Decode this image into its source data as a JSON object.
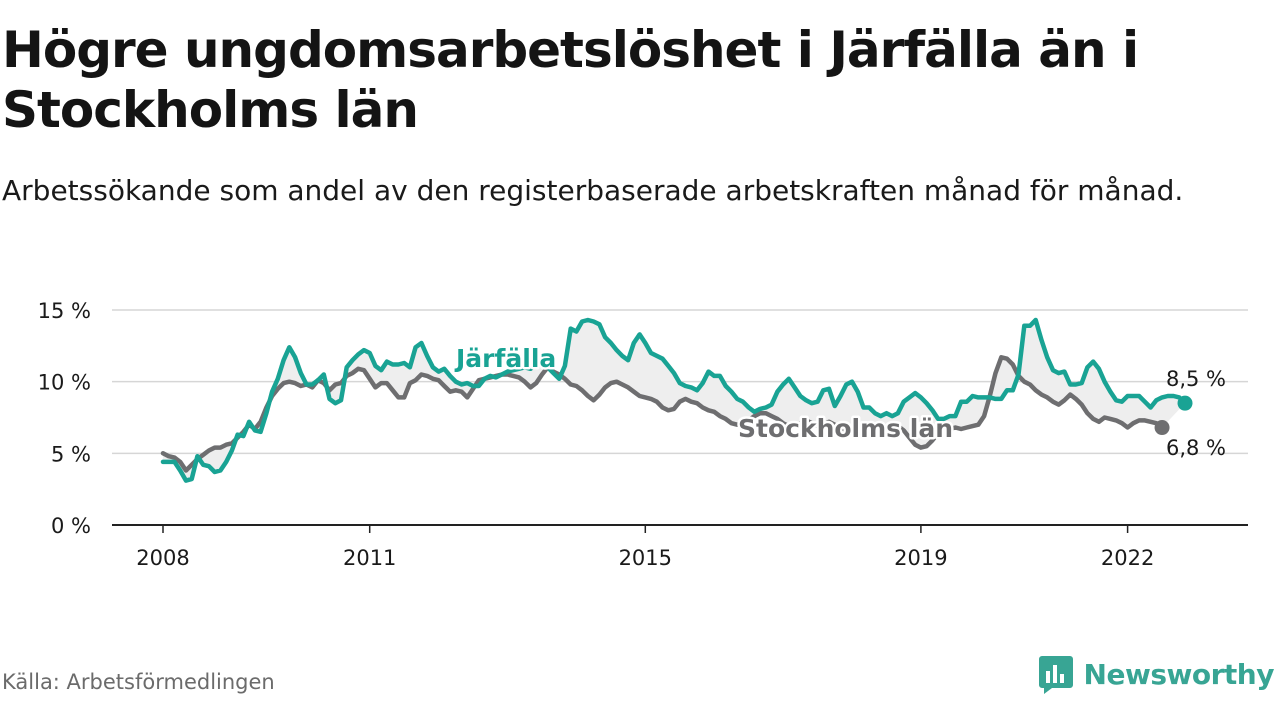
{
  "title": "Högre ungdomsarbetslöshet i Järfälla än i Stockholms län",
  "subtitle": "Arbetssökande som andel av den registerbaserade arbetskraften månad för månad.",
  "source": "Källa: Arbetsförmedlingen",
  "brand": {
    "name": "Newsworthy",
    "color": "#38a594",
    "icon": "bar-chart-logo-icon"
  },
  "colors": {
    "jarfalla": "#19a394",
    "stockholm": "#6e6e70",
    "fill": "#eeeeee",
    "grid": "#d6d6d6",
    "axis": "#222222"
  },
  "chart_data": {
    "type": "line",
    "title": "Högre ungdomsarbetslöshet i Järfälla än i Stockholms län",
    "xlabel": "",
    "ylabel": "",
    "ylim": [
      0,
      15
    ],
    "y_ticks": [
      0,
      5,
      10,
      15
    ],
    "y_tick_labels": [
      "0 %",
      "5 %",
      "10 %",
      "15 %"
    ],
    "x_ticks": [
      2008,
      2011,
      2015,
      2019,
      2022
    ],
    "x_tick_labels": [
      "2008",
      "2011",
      "2015",
      "2019",
      "2022"
    ],
    "x_start": 2008.0,
    "x_step_months": 1,
    "series": [
      {
        "name": "Järfälla",
        "label": "Järfälla",
        "end_label": "8,5 %",
        "values": [
          4.4,
          4.4,
          4.4,
          3.8,
          3.1,
          3.2,
          4.8,
          4.2,
          4.1,
          3.7,
          3.8,
          4.4,
          5.2,
          6.3,
          6.2,
          7.2,
          6.6,
          6.5,
          7.8,
          9.3,
          10.2,
          11.5,
          12.4,
          11.7,
          10.6,
          9.8,
          9.8,
          10.1,
          10.5,
          8.8,
          8.5,
          8.7,
          11.0,
          11.5,
          11.9,
          12.2,
          12.0,
          11.1,
          10.8,
          11.4,
          11.2,
          11.2,
          11.3,
          11.0,
          12.4,
          12.7,
          11.8,
          11.0,
          10.7,
          10.9,
          10.4,
          10.0,
          9.8,
          9.9,
          9.7,
          9.7,
          10.2,
          10.4,
          10.3,
          10.5,
          10.7,
          10.8,
          10.9,
          11.0,
          10.9,
          11.2,
          11.1,
          11.0,
          10.6,
          10.2,
          11.1,
          13.7,
          13.5,
          14.2,
          14.3,
          14.2,
          14.0,
          13.1,
          12.7,
          12.2,
          11.8,
          11.5,
          12.7,
          13.3,
          12.7,
          12.0,
          11.8,
          11.6,
          11.1,
          10.6,
          9.9,
          9.7,
          9.6,
          9.4,
          9.9,
          10.7,
          10.4,
          10.4,
          9.7,
          9.3,
          8.8,
          8.6,
          8.2,
          7.9,
          8.1,
          8.2,
          8.4,
          9.3,
          9.8,
          10.2,
          9.6,
          9.0,
          8.7,
          8.5,
          8.6,
          9.4,
          9.5,
          8.3,
          9.0,
          9.8,
          10.0,
          9.3,
          8.2,
          8.2,
          7.8,
          7.6,
          7.8,
          7.6,
          7.8,
          8.6,
          8.9,
          9.2,
          8.9,
          8.5,
          8.0,
          7.4,
          7.4,
          7.6,
          7.6,
          8.6,
          8.6,
          9.0,
          8.9,
          8.9,
          8.9,
          8.8,
          8.8,
          9.4,
          9.4,
          10.5,
          13.9,
          13.9,
          14.3,
          12.9,
          11.7,
          10.8,
          10.6,
          10.7,
          9.8,
          9.8,
          9.9,
          11.0,
          11.4,
          10.9,
          10.0,
          9.3,
          8.7,
          8.6,
          9.0,
          9.0,
          9.0,
          8.6,
          8.2,
          8.7,
          8.9,
          9.0,
          9.0,
          8.9,
          8.5
        ]
      },
      {
        "name": "Stockholms län",
        "label": "Stockholms län",
        "end_label": "6,8 %",
        "values": [
          5.0,
          4.8,
          4.7,
          4.4,
          3.8,
          4.2,
          4.6,
          4.9,
          5.2,
          5.4,
          5.4,
          5.6,
          5.7,
          6.1,
          6.5,
          7.0,
          6.7,
          7.2,
          8.2,
          9.0,
          9.5,
          9.9,
          10.0,
          9.9,
          9.7,
          9.8,
          9.6,
          10.1,
          9.9,
          9.4,
          9.8,
          9.9,
          10.4,
          10.6,
          10.9,
          10.8,
          10.2,
          9.6,
          9.9,
          9.9,
          9.4,
          8.9,
          8.9,
          9.9,
          10.1,
          10.5,
          10.4,
          10.2,
          10.1,
          9.7,
          9.3,
          9.4,
          9.3,
          8.9,
          9.5,
          10.1,
          10.2,
          10.3,
          10.4,
          10.5,
          10.5,
          10.4,
          10.3,
          10.0,
          9.6,
          9.9,
          10.5,
          11.0,
          10.7,
          10.5,
          10.2,
          9.8,
          9.7,
          9.4,
          9.0,
          8.7,
          9.1,
          9.6,
          9.9,
          10.0,
          9.8,
          9.6,
          9.3,
          9.0,
          8.9,
          8.8,
          8.6,
          8.2,
          8.0,
          8.1,
          8.6,
          8.8,
          8.6,
          8.5,
          8.2,
          8.0,
          7.9,
          7.6,
          7.4,
          7.1,
          7.0,
          7.1,
          7.3,
          7.6,
          7.8,
          7.8,
          7.6,
          7.4,
          7.1,
          6.9,
          6.9,
          7.1,
          7.3,
          7.1,
          6.9,
          7.0,
          7.2,
          7.0,
          6.8,
          6.6,
          6.5,
          6.6,
          6.7,
          6.6,
          6.4,
          6.6,
          6.8,
          7.0,
          6.9,
          6.6,
          6.1,
          5.6,
          5.4,
          5.5,
          5.9,
          6.4,
          6.6,
          6.7,
          6.8,
          6.7,
          6.8,
          6.9,
          7.0,
          7.6,
          9.0,
          10.6,
          11.7,
          11.6,
          11.2,
          10.4,
          10.0,
          9.8,
          9.4,
          9.1,
          8.9,
          8.6,
          8.4,
          8.7,
          9.1,
          8.8,
          8.4,
          7.8,
          7.4,
          7.2,
          7.5,
          7.4,
          7.3,
          7.1,
          6.8,
          7.1,
          7.3,
          7.3,
          7.2,
          7.1,
          6.8
        ]
      }
    ]
  }
}
